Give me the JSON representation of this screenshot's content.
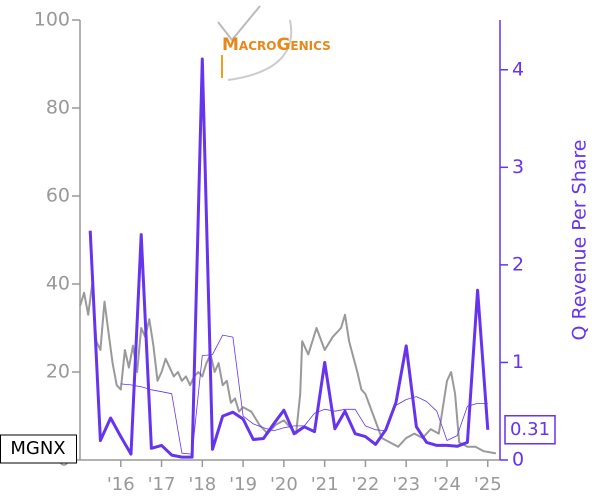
{
  "chart_data": {
    "type": "line",
    "logo": "MacroGenics",
    "ticker": "MGNX",
    "y2_label": "Q Revenue Per Share",
    "xlim": [
      2015.0,
      2025.3
    ],
    "xticks": [
      {
        "value": 2016,
        "label": "'16"
      },
      {
        "value": 2017,
        "label": "'17"
      },
      {
        "value": 2018,
        "label": "'18"
      },
      {
        "value": 2019,
        "label": "'19"
      },
      {
        "value": 2020,
        "label": "'20"
      },
      {
        "value": 2021,
        "label": "'21"
      },
      {
        "value": 2022,
        "label": "'22"
      },
      {
        "value": 2023,
        "label": "'23"
      },
      {
        "value": 2024,
        "label": "'24"
      },
      {
        "value": 2025,
        "label": "'25"
      }
    ],
    "ylim": [
      0,
      100
    ],
    "yticks": [
      0,
      20,
      40,
      60,
      80,
      100
    ],
    "y2lim": [
      0,
      4.51
    ],
    "y2ticks": [
      0,
      1,
      2,
      3,
      4
    ],
    "series": [
      {
        "color": "#999999",
        "axis": "y",
        "x": [
          2015.0,
          2015.1,
          2015.2,
          2015.3,
          2015.4,
          2015.5,
          2015.6,
          2015.7,
          2015.8,
          2015.9,
          2016.0,
          2016.1,
          2016.2,
          2016.3,
          2016.4,
          2016.5,
          2016.6,
          2016.7,
          2016.8,
          2016.9,
          2017.0,
          2017.1,
          2017.2,
          2017.3,
          2017.4,
          2017.5,
          2017.6,
          2017.7,
          2017.8,
          2017.9,
          2018.0,
          2018.1,
          2018.2,
          2018.3,
          2018.4,
          2018.5,
          2018.6,
          2018.7,
          2018.8,
          2018.9,
          2019.0,
          2019.2,
          2019.4,
          2019.6,
          2019.8,
          2020.0,
          2020.2,
          2020.3,
          2020.4,
          2020.45,
          2020.6,
          2020.8,
          2021.0,
          2021.2,
          2021.4,
          2021.5,
          2021.6,
          2021.8,
          2021.9,
          2022.0,
          2022.2,
          2022.4,
          2022.6,
          2022.8,
          2023.0,
          2023.2,
          2023.4,
          2023.6,
          2023.8,
          2024.0,
          2024.1,
          2024.2,
          2024.3,
          2024.5,
          2024.7,
          2024.9,
          2025.2
        ],
        "values": [
          35,
          38,
          33,
          40,
          27,
          25,
          36,
          29,
          22,
          17,
          16,
          25,
          21,
          26,
          20,
          30,
          28,
          32,
          26,
          18,
          20,
          23,
          21,
          19,
          20,
          18,
          19,
          17,
          19,
          20,
          19,
          22,
          24,
          20,
          22,
          17,
          18,
          13,
          14,
          11,
          12,
          11,
          8,
          6,
          8,
          9,
          7,
          6,
          15,
          27,
          24,
          30,
          25,
          28,
          30,
          33,
          27,
          20,
          16,
          15,
          10,
          5,
          4,
          3,
          5,
          6,
          5,
          7,
          6,
          18,
          20,
          15,
          4,
          3,
          3,
          2,
          1.5
        ]
      },
      {
        "color": "#6633ee",
        "axis": "y2",
        "x": [
          2015.25,
          2015.5,
          2015.75,
          2016.0,
          2016.25,
          2016.5,
          2016.75,
          2017.0,
          2017.25,
          2017.5,
          2017.75,
          2018.0,
          2018.25,
          2018.5,
          2018.75,
          2019.0,
          2019.25,
          2019.5,
          2019.75,
          2020.0,
          2020.25,
          2020.5,
          2020.75,
          2021.0,
          2021.25,
          2021.5,
          2021.75,
          2022.0,
          2022.25,
          2022.5,
          2022.75,
          2023.0,
          2023.25,
          2023.5,
          2023.75,
          2024.0,
          2024.25,
          2024.5,
          2024.75,
          2025.0
        ],
        "values": [
          2.35,
          0.2,
          0.43,
          0.24,
          0.06,
          2.31,
          0.12,
          0.15,
          0.05,
          0.03,
          0.03,
          4.11,
          0.11,
          0.45,
          0.49,
          0.42,
          0.21,
          0.22,
          0.37,
          0.51,
          0.27,
          0.34,
          0.29,
          1.0,
          0.32,
          0.5,
          0.27,
          0.24,
          0.16,
          0.31,
          0.59,
          1.17,
          0.34,
          0.18,
          0.15,
          0.15,
          0.14,
          0.18,
          1.74,
          0.31
        ]
      },
      {
        "color": "#6633ee",
        "axis": "y2",
        "x": [
          2016.0,
          2016.25,
          2016.5,
          2016.75,
          2017.0,
          2017.25,
          2017.5,
          2017.75,
          2018.0,
          2018.25,
          2018.5,
          2018.75,
          2019.0,
          2019.25,
          2019.5,
          2019.75,
          2020.0,
          2020.25,
          2020.5,
          2020.75,
          2021.0,
          2021.25,
          2021.5,
          2021.75,
          2022.0,
          2022.25,
          2022.5,
          2022.75,
          2023.0,
          2023.25,
          2023.5,
          2023.75,
          2024.0,
          2024.25,
          2024.5,
          2024.75,
          2025.0
        ],
        "values": [
          0.78,
          0.77,
          0.75,
          0.72,
          0.7,
          0.68,
          0.07,
          0.06,
          1.07,
          1.08,
          1.28,
          1.26,
          0.45,
          0.37,
          0.33,
          0.3,
          0.33,
          0.35,
          0.35,
          0.48,
          0.52,
          0.5,
          0.52,
          0.52,
          0.35,
          0.31,
          0.3,
          0.56,
          0.62,
          0.65,
          0.6,
          0.5,
          0.2,
          0.25,
          0.55,
          0.58,
          0.58
        ]
      }
    ]
  }
}
